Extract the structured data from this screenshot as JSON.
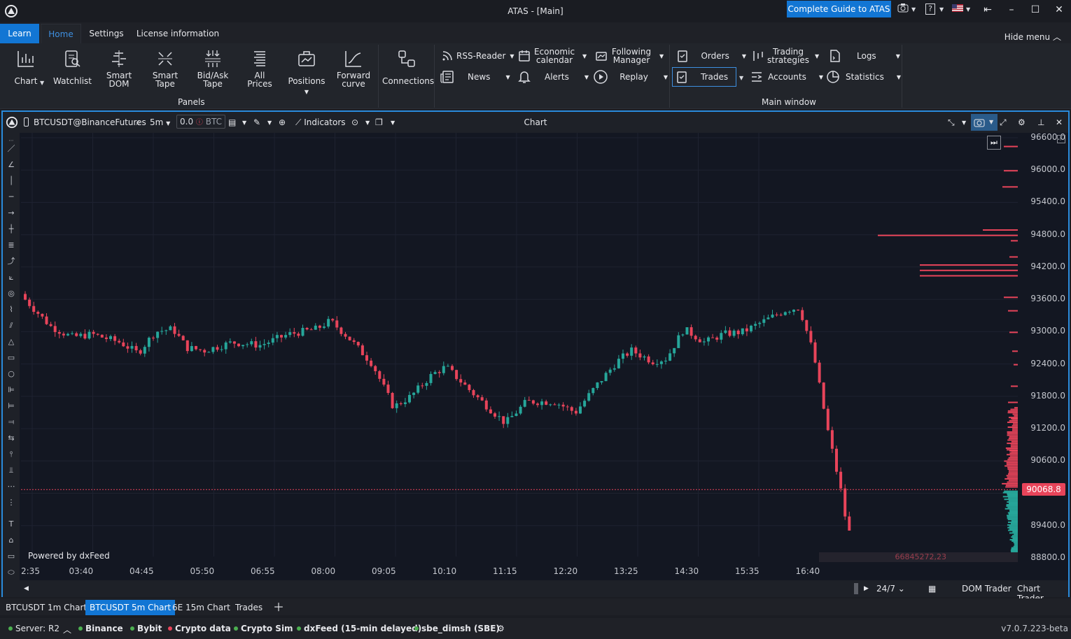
{
  "window": {
    "title": "ATAS - [Main]",
    "guide_button": "Complete Guide to ATAS",
    "help_icon": "?"
  },
  "ribbon_tabs": {
    "learn": "Learn",
    "home": "Home",
    "settings": "Settings",
    "license": "License information",
    "hide_menu": "Hide menu"
  },
  "ribbon": {
    "chart": "Chart",
    "watchlist": "Watchlist",
    "smart_dom_1": "Smart",
    "smart_dom_2": "DOM",
    "smart_tape_1": "Smart",
    "smart_tape_2": "Tape",
    "bidask_1": "Bid/Ask",
    "bidask_2": "Tape",
    "all_prices_1": "All",
    "all_prices_2": "Prices",
    "positions": "Positions",
    "forward_1": "Forward",
    "forward_2": "curve",
    "panels_label": "Panels",
    "connections": "Connections",
    "rss_reader": "RSS-Reader",
    "economic_1": "Economic",
    "economic_2": "calendar",
    "following_1": "Following",
    "following_2": "Manager",
    "news": "News",
    "alerts": "Alerts",
    "replay": "Replay",
    "orders": "Orders",
    "trading_1": "Trading",
    "trading_2": "strategies",
    "logs": "Logs",
    "trades": "Trades",
    "accounts": "Accounts",
    "statistics": "Statistics",
    "main_window_label": "Main window"
  },
  "chart_toolbar": {
    "instrument": "BTCUSDT@BinanceFutures",
    "timeframe": "5m",
    "qty_value": "0.0",
    "qty_unit": "BTC",
    "indicators": "Indicators",
    "title": "Chart"
  },
  "chart": {
    "powered_by": "Powered by dxFeed",
    "volume_readout": "66845272,23",
    "last_price": "90068.8",
    "price_labels": [
      "96600.0",
      "96000.0",
      "95400.0",
      "94800.0",
      "94200.0",
      "93600.0",
      "93000.0",
      "92400.0",
      "91800.0",
      "91200.0",
      "90600.0",
      "89400.0",
      "88800.0"
    ],
    "time_labels": [
      "2:35",
      "03:40",
      "04:45",
      "05:50",
      "06:55",
      "08:00",
      "09:05",
      "10:10",
      "11:15",
      "12:20",
      "13:25",
      "14:30",
      "15:35",
      "16:40"
    ],
    "session": "24/7",
    "dom_trader": "DOM Trader",
    "chart_trader": "Chart Trader",
    "colors": {
      "up": "#26a69a",
      "down": "#e8445a",
      "accent": "#1276d4",
      "background": "#131722"
    }
  },
  "window_tabs": [
    "BTCUSDT 1m Chart",
    "BTCUSDT 5m Chart",
    "6E 15m Chart",
    "Trades"
  ],
  "active_tab": "BTCUSDT 5m Chart",
  "status": {
    "server": "Server: R2",
    "items": [
      {
        "label": "Binance",
        "color": "#4caf50"
      },
      {
        "label": "Bybit",
        "color": "#4caf50"
      },
      {
        "label": "Crypto data",
        "color": "#e8445a"
      },
      {
        "label": "Crypto Sim",
        "color": "#4caf50"
      },
      {
        "label": "dxFeed (15-min delayed)",
        "color": "#4caf50"
      },
      {
        "label": "sbe_dimsh (SBE)",
        "color": "#4caf50"
      }
    ],
    "version": "v7.0.7.223-beta"
  }
}
